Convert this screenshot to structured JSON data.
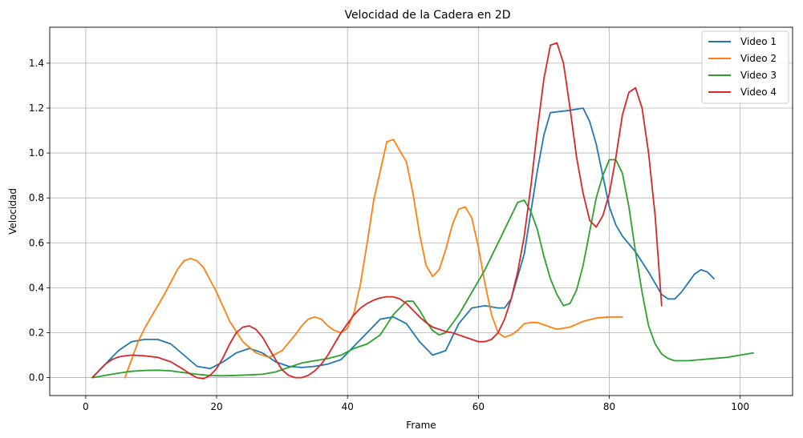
{
  "chart_data": {
    "type": "line",
    "title": "Velocidad de la Cadera en 2D",
    "xlabel": "Frame",
    "ylabel": "Velocidad",
    "xlim": [
      -5.5,
      108
    ],
    "ylim": [
      -0.08,
      1.56
    ],
    "xticks": [
      0,
      20,
      40,
      60,
      80,
      100
    ],
    "xtick_labels": [
      "0",
      "20",
      "40",
      "60",
      "80",
      "100"
    ],
    "yticks": [
      0,
      0.2,
      0.4,
      0.6,
      0.8,
      1.0,
      1.2,
      1.4
    ],
    "ytick_labels": [
      "0.0",
      "0.2",
      "0.4",
      "0.6",
      "0.8",
      "1.0",
      "1.2",
      "1.4"
    ],
    "grid": true,
    "legend_position": "top-right",
    "series": [
      {
        "name": "Video 1",
        "color": "#1f77b4",
        "x": [
          1,
          3,
          5,
          7,
          9,
          11,
          13,
          15,
          17,
          19,
          21,
          23,
          25,
          27,
          29,
          31,
          33,
          35,
          37,
          39,
          41,
          43,
          45,
          47,
          49,
          51,
          53,
          55,
          57,
          59,
          61,
          63,
          64,
          65,
          67,
          69,
          70,
          71,
          74,
          76,
          77,
          78,
          79,
          80,
          81,
          82,
          84,
          86,
          88,
          89,
          90,
          91,
          92,
          93,
          94,
          95,
          96
        ],
        "y": [
          0.0,
          0.06,
          0.12,
          0.16,
          0.17,
          0.17,
          0.15,
          0.1,
          0.05,
          0.04,
          0.07,
          0.11,
          0.13,
          0.11,
          0.07,
          0.05,
          0.045,
          0.05,
          0.06,
          0.08,
          0.14,
          0.2,
          0.26,
          0.27,
          0.24,
          0.16,
          0.1,
          0.12,
          0.24,
          0.31,
          0.32,
          0.31,
          0.31,
          0.35,
          0.55,
          0.92,
          1.08,
          1.18,
          1.19,
          1.2,
          1.14,
          1.04,
          0.9,
          0.76,
          0.68,
          0.63,
          0.56,
          0.47,
          0.37,
          0.35,
          0.35,
          0.38,
          0.42,
          0.46,
          0.48,
          0.47,
          0.44
        ]
      },
      {
        "name": "Video 2",
        "color": "#ff7f0e",
        "x": [
          6,
          7,
          8,
          9,
          10,
          12,
          14,
          15,
          16,
          17,
          18,
          20,
          22,
          24,
          26,
          28,
          30,
          32,
          33,
          34,
          35,
          36,
          37,
          38,
          39,
          40,
          41,
          42,
          43,
          44,
          46,
          47,
          49,
          50,
          51,
          52,
          53,
          54,
          55,
          56,
          57,
          58,
          59,
          60,
          61,
          62,
          63,
          64,
          65,
          66,
          67,
          68,
          69,
          70,
          72,
          74,
          76,
          78,
          80,
          82
        ],
        "y": [
          0.0,
          0.08,
          0.16,
          0.22,
          0.27,
          0.37,
          0.48,
          0.52,
          0.53,
          0.52,
          0.49,
          0.38,
          0.25,
          0.16,
          0.11,
          0.09,
          0.12,
          0.19,
          0.23,
          0.26,
          0.27,
          0.26,
          0.23,
          0.21,
          0.2,
          0.22,
          0.29,
          0.42,
          0.6,
          0.79,
          1.05,
          1.06,
          0.96,
          0.82,
          0.64,
          0.5,
          0.45,
          0.48,
          0.57,
          0.68,
          0.75,
          0.76,
          0.71,
          0.58,
          0.42,
          0.28,
          0.2,
          0.18,
          0.19,
          0.21,
          0.24,
          0.245,
          0.245,
          0.235,
          0.215,
          0.225,
          0.25,
          0.265,
          0.27,
          0.27
        ]
      },
      {
        "name": "Video 3",
        "color": "#2ca02c",
        "x": [
          1,
          3,
          5,
          7,
          9,
          11,
          13,
          15,
          17,
          19,
          21,
          23,
          25,
          27,
          29,
          31,
          33,
          35,
          37,
          39,
          41,
          43,
          45,
          47,
          49,
          50,
          51,
          52,
          53,
          54,
          55,
          57,
          59,
          61,
          63,
          65,
          66,
          67,
          68,
          69,
          70,
          71,
          72,
          73,
          74,
          75,
          76,
          77,
          78,
          79,
          80,
          81,
          82,
          83,
          84,
          85,
          86,
          87,
          88,
          89,
          90,
          91,
          92,
          94,
          96,
          98,
          100,
          102
        ],
        "y": [
          0.0,
          0.01,
          0.02,
          0.028,
          0.032,
          0.033,
          0.03,
          0.022,
          0.015,
          0.009,
          0.008,
          0.01,
          0.012,
          0.015,
          0.025,
          0.045,
          0.065,
          0.075,
          0.085,
          0.1,
          0.13,
          0.15,
          0.19,
          0.28,
          0.34,
          0.34,
          0.3,
          0.25,
          0.21,
          0.19,
          0.2,
          0.28,
          0.38,
          0.48,
          0.6,
          0.72,
          0.78,
          0.79,
          0.74,
          0.66,
          0.54,
          0.44,
          0.37,
          0.32,
          0.33,
          0.39,
          0.5,
          0.65,
          0.8,
          0.9,
          0.97,
          0.97,
          0.91,
          0.76,
          0.56,
          0.38,
          0.23,
          0.15,
          0.105,
          0.085,
          0.075,
          0.075,
          0.075,
          0.08,
          0.085,
          0.09,
          0.1,
          0.11
        ]
      },
      {
        "name": "Video 4",
        "color": "#d62728",
        "x": [
          1,
          2,
          3,
          4,
          5,
          6,
          7,
          9,
          11,
          13,
          15,
          16,
          17,
          18,
          19,
          20,
          21,
          22,
          23,
          24,
          25,
          26,
          27,
          28,
          29,
          30,
          31,
          32,
          33,
          34,
          35,
          36,
          37,
          38,
          39,
          40,
          41,
          42,
          43,
          44,
          45,
          46,
          47,
          48,
          49,
          50,
          51,
          52,
          53,
          54,
          55,
          56,
          57,
          58,
          59,
          60,
          61,
          62,
          63,
          64,
          65,
          66,
          67,
          68,
          69,
          70,
          71,
          72,
          73,
          74,
          75,
          76,
          77,
          78,
          79,
          80,
          81,
          82,
          83,
          84,
          85,
          86,
          87,
          88
        ],
        "y": [
          0.0,
          0.03,
          0.06,
          0.08,
          0.092,
          0.097,
          0.1,
          0.097,
          0.09,
          0.07,
          0.035,
          0.015,
          0.0,
          -0.005,
          0.01,
          0.04,
          0.09,
          0.15,
          0.2,
          0.225,
          0.23,
          0.215,
          0.18,
          0.13,
          0.08,
          0.035,
          0.01,
          0.0,
          0.0,
          0.01,
          0.03,
          0.06,
          0.1,
          0.15,
          0.2,
          0.24,
          0.28,
          0.31,
          0.33,
          0.345,
          0.355,
          0.36,
          0.36,
          0.35,
          0.33,
          0.3,
          0.27,
          0.245,
          0.225,
          0.215,
          0.205,
          0.2,
          0.19,
          0.18,
          0.17,
          0.16,
          0.16,
          0.17,
          0.2,
          0.26,
          0.35,
          0.47,
          0.63,
          0.85,
          1.1,
          1.33,
          1.48,
          1.49,
          1.4,
          1.2,
          0.98,
          0.82,
          0.7,
          0.67,
          0.72,
          0.82,
          0.98,
          1.17,
          1.27,
          1.29,
          1.2,
          1.0,
          0.72,
          0.32
        ]
      }
    ]
  }
}
